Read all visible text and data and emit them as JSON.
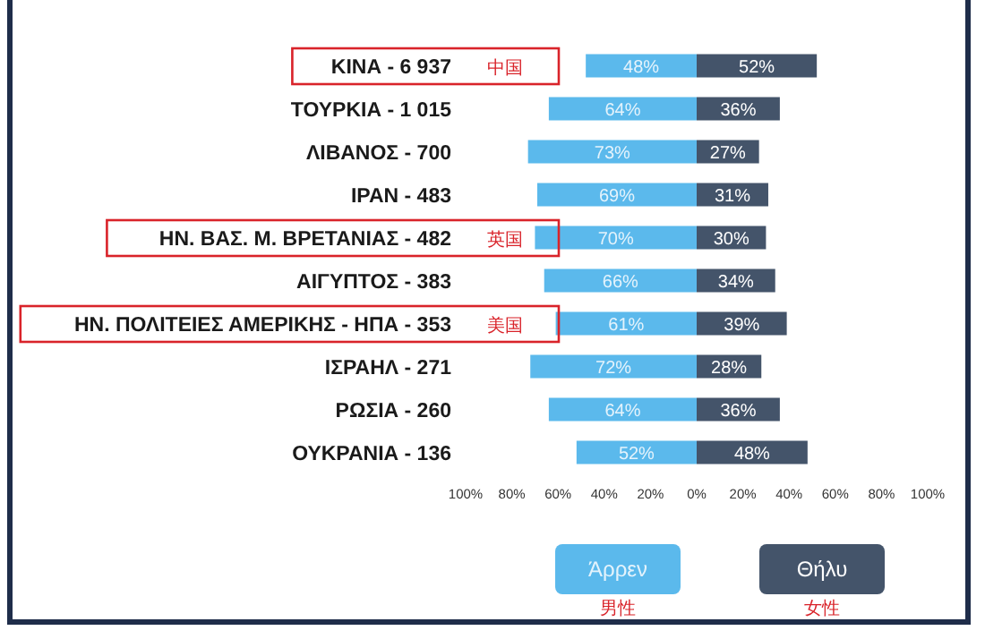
{
  "chart_data": {
    "type": "bar",
    "orientation": "horizontal",
    "categories": [
      "ΚΙΝΑ - 6 937 中国",
      "ΤΟΥΡΚΙΑ - 1 015",
      "ΛΙΒΑΝΟΣ - 700",
      "ΙΡΑΝ - 483",
      "ΗΝ. ΒΑΣ. Μ. ΒΡΕΤΑΝΙΑΣ - 482 英国",
      "ΑΙΓΥΠΤΟΣ - 383",
      "ΗΝ. ΠΟΛΙΤΕΙΕΣ ΑΜΕΡΙΚΗΣ - ΗΠΑ - 353 美国",
      "ΙΣΡΑΗΛ - 271",
      "ΡΩΣΙΑ - 260",
      "ΟΥΚΡΑΝΙΑ - 136"
    ],
    "series": [
      {
        "name": "Άρρεν",
        "color": "#5bb9ec",
        "values": [
          48,
          64,
          73,
          69,
          70,
          66,
          61,
          72,
          64,
          52
        ],
        "base": [
          -48,
          -64,
          -73,
          -69,
          -70,
          -66,
          -61,
          -72,
          -64,
          -52
        ],
        "value_labels": [
          "48%",
          "64%",
          "73%",
          "69%",
          "70%",
          "66%",
          "61%",
          "72%",
          "64%",
          "52%"
        ]
      },
      {
        "name": "Θήλυ",
        "color": "#44546a",
        "values": [
          52,
          36,
          27,
          31,
          30,
          34,
          39,
          28,
          36,
          48
        ],
        "base": [
          0,
          0,
          0,
          0,
          0,
          0,
          0,
          0,
          0,
          0
        ],
        "value_labels": [
          "52%",
          "36%",
          "27%",
          "31%",
          "30%",
          "34%",
          "39%",
          "28%",
          "36%",
          "48%"
        ]
      }
    ],
    "xlim": [
      -100,
      100
    ],
    "xticks": [
      {
        "value": -100,
        "label": "100%"
      },
      {
        "value": -80,
        "label": "80%"
      },
      {
        "value": -60,
        "label": "60%"
      },
      {
        "value": -40,
        "label": "40%"
      },
      {
        "value": -20,
        "label": "20%"
      },
      {
        "value": 0,
        "label": "0%"
      },
      {
        "value": 20,
        "label": "20%"
      },
      {
        "value": 40,
        "label": "40%"
      },
      {
        "value": 60,
        "label": "60%"
      },
      {
        "value": 80,
        "label": "80%"
      },
      {
        "value": 100,
        "label": "100%"
      }
    ],
    "annotations": [
      "男性",
      "女性"
    ],
    "legend": "bottom"
  }
}
